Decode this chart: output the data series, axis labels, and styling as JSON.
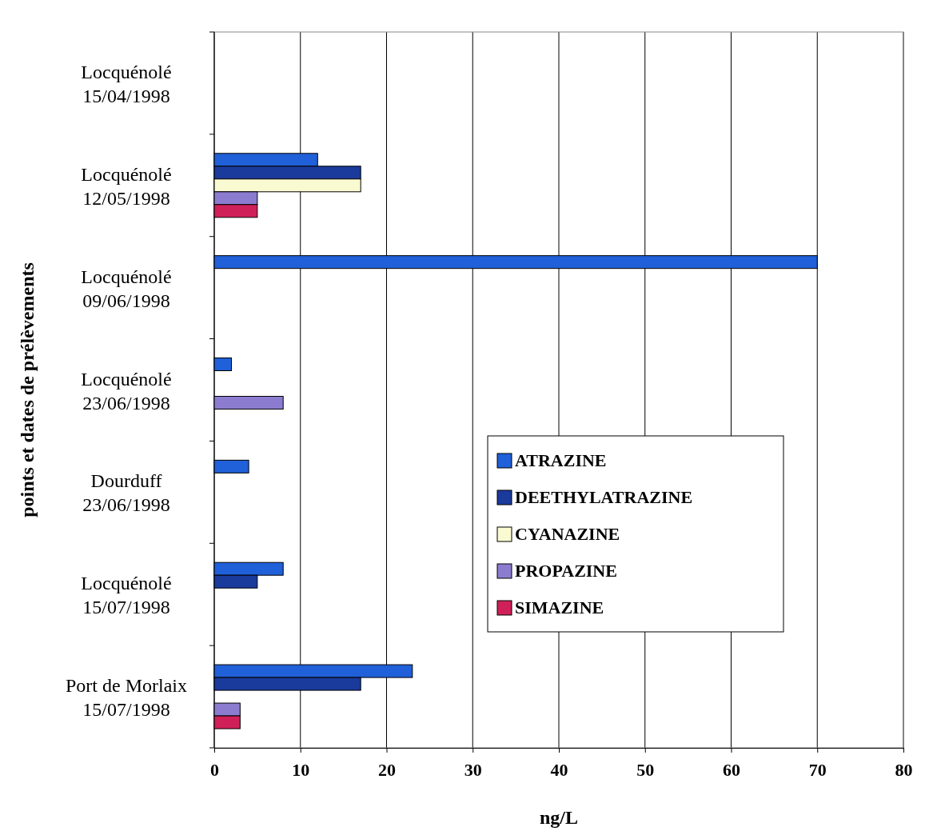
{
  "chart_data": {
    "type": "bar",
    "orientation": "horizontal",
    "xlabel": "ng/L",
    "ylabel": "points et dates de prélèvements",
    "categories": [
      "Locquénolé\n15/04/1998",
      "Locquénolé\n12/05/1998",
      "Locquénolé\n09/06/1998",
      "Locquénolé\n23/06/1998",
      "Dourduff\n23/06/1998",
      "Locquénolé\n15/07/1998",
      "Port de Morlaix\n15/07/1998"
    ],
    "series": [
      {
        "name": "ATRAZINE",
        "color": "#2060d8",
        "values": [
          null,
          12,
          70,
          2,
          4,
          8,
          23
        ]
      },
      {
        "name": "DEETHYLATRAZINE",
        "color": "#1a3a9c",
        "values": [
          null,
          17,
          null,
          null,
          null,
          5,
          17
        ]
      },
      {
        "name": "CYANAZINE",
        "color": "#fafad2",
        "values": [
          null,
          17,
          null,
          null,
          null,
          null,
          null
        ]
      },
      {
        "name": "PROPAZINE",
        "color": "#8c7cd0",
        "values": [
          null,
          5,
          null,
          8,
          null,
          null,
          3
        ]
      },
      {
        "name": "SIMAZINE",
        "color": "#d0205a",
        "values": [
          null,
          5,
          null,
          null,
          null,
          null,
          3
        ]
      }
    ],
    "xlim": [
      0,
      80
    ],
    "xticks": [
      0,
      10,
      20,
      30,
      40,
      50,
      60,
      70,
      80
    ],
    "grid": "x",
    "legend": "right"
  }
}
